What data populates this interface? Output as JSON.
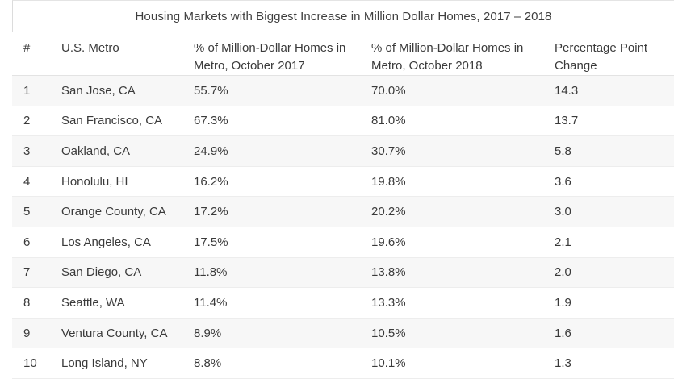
{
  "chart_data": {
    "type": "table",
    "title": "Housing Markets with Biggest Increase in Million Dollar Homes, 2017 – 2018",
    "columns": [
      "#",
      "U.S. Metro",
      "% of Million-Dollar Homes in Metro, October 2017",
      "% of Million-Dollar Homes in Metro, October 2018",
      "Percentage Point Change"
    ],
    "rows": [
      [
        "1",
        "San Jose, CA",
        "55.7%",
        "70.0%",
        "14.3"
      ],
      [
        "2",
        "San Francisco, CA",
        "67.3%",
        "81.0%",
        "13.7"
      ],
      [
        "3",
        "Oakland, CA",
        "24.9%",
        "30.7%",
        "5.8"
      ],
      [
        "4",
        "Honolulu, HI",
        "16.2%",
        "19.8%",
        "3.6"
      ],
      [
        "5",
        "Orange County, CA",
        "17.2%",
        "20.2%",
        "3.0"
      ],
      [
        "6",
        "Los Angeles, CA",
        "17.5%",
        "19.6%",
        "2.1"
      ],
      [
        "7",
        "San Diego, CA",
        "11.8%",
        "13.8%",
        "2.0"
      ],
      [
        "8",
        "Seattle, WA",
        "11.4%",
        "13.3%",
        "1.9"
      ],
      [
        "9",
        "Ventura County, CA",
        "8.9%",
        "10.5%",
        "1.6"
      ],
      [
        "10",
        "Long Island, NY",
        "8.8%",
        "10.1%",
        "1.3"
      ]
    ]
  }
}
